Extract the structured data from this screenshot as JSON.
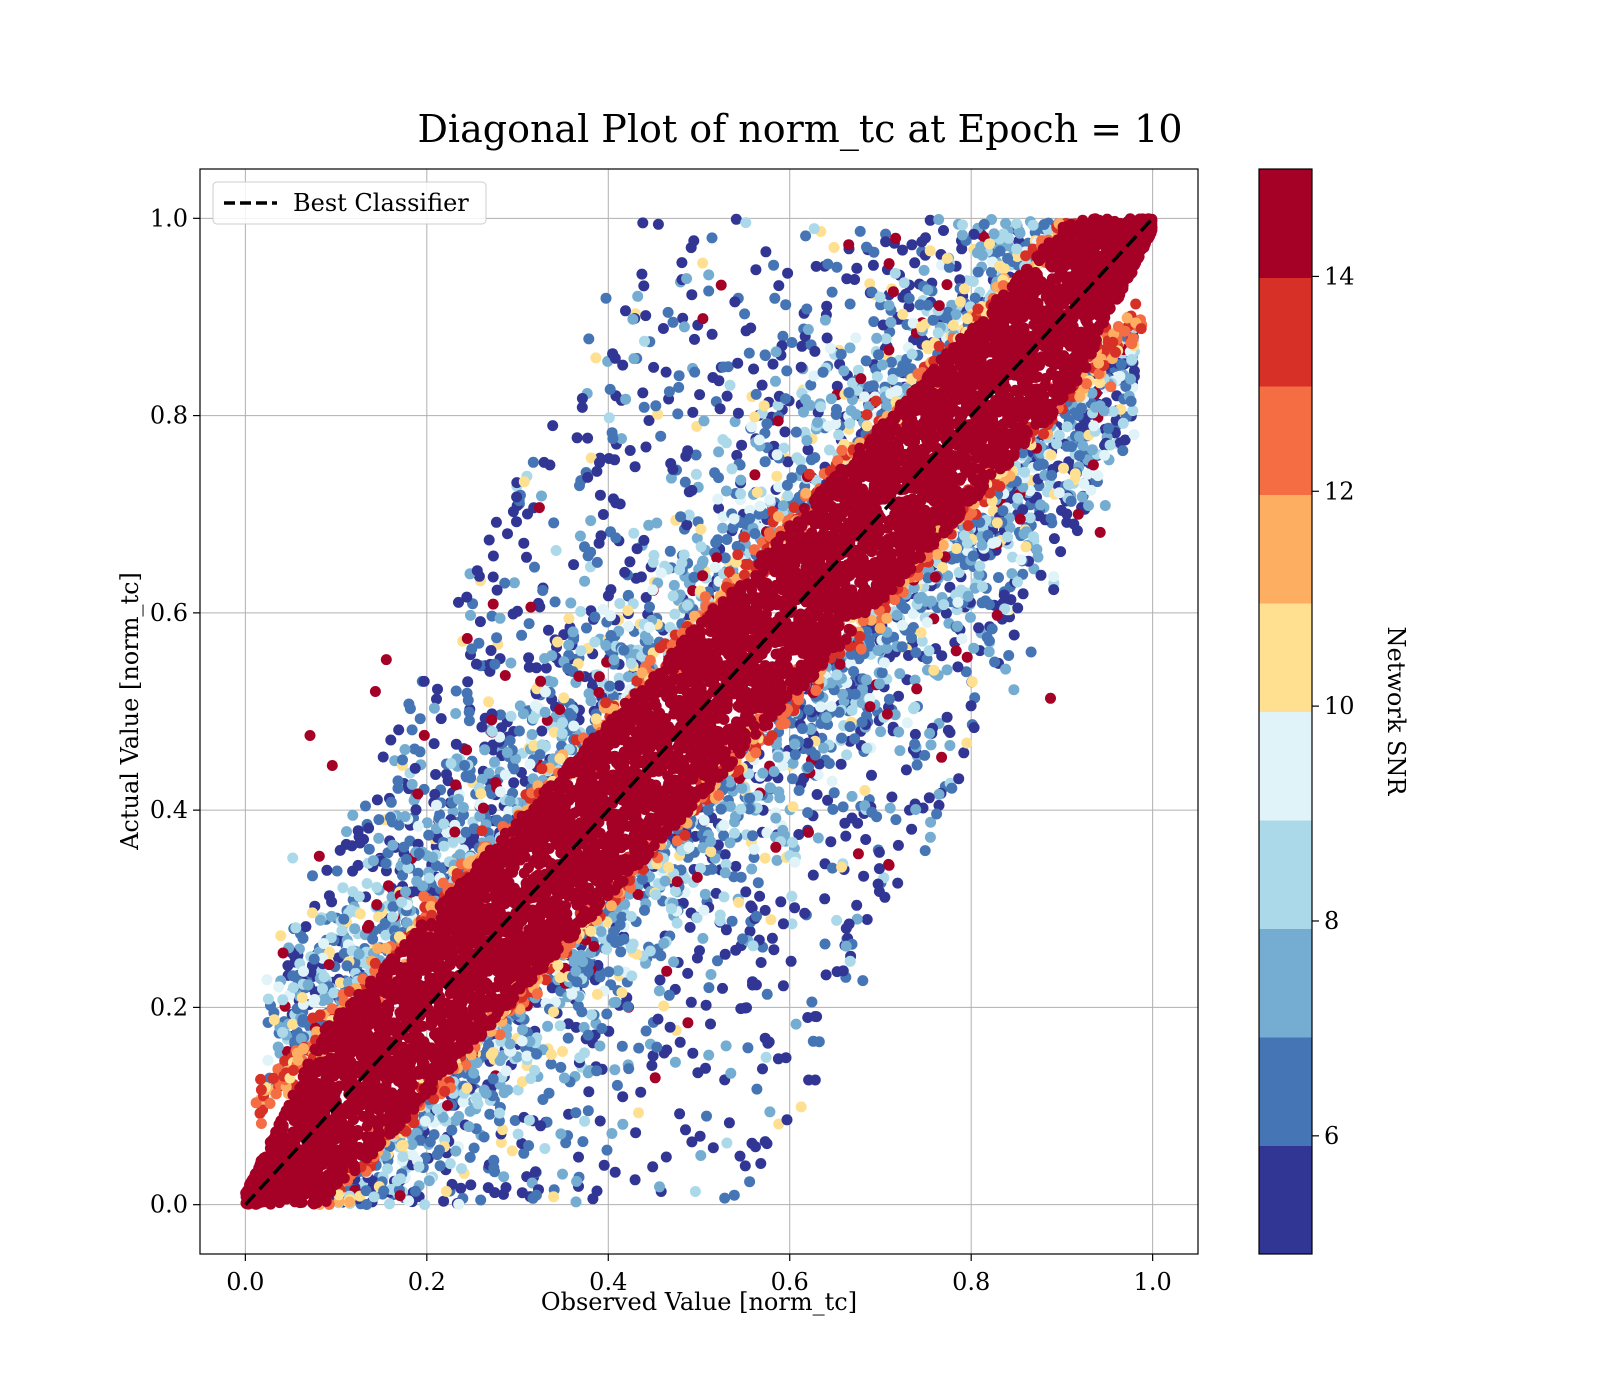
{
  "chart_data": {
    "type": "scatter",
    "title": "Diagonal Plot of norm_tc at Epoch = 10",
    "xlabel": "Observed Value [norm_tc]",
    "ylabel": "Actual Value [norm_tc]",
    "xlim": [
      -0.05,
      1.05
    ],
    "ylim": [
      -0.05,
      1.05
    ],
    "xticks": [
      "0.0",
      "0.2",
      "0.4",
      "0.6",
      "0.8",
      "1.0"
    ],
    "yticks": [
      "0.0",
      "0.2",
      "0.4",
      "0.6",
      "0.8",
      "1.0"
    ],
    "grid": true,
    "legend": {
      "position": "upper-left",
      "entries": [
        {
          "label": "Best Classifier",
          "style": "dashed",
          "color": "#000000"
        }
      ]
    },
    "reference_line": {
      "name": "Best Classifier",
      "x": [
        0,
        1
      ],
      "y": [
        0,
        1
      ]
    },
    "colorbar": {
      "label": "Network SNR",
      "range": [
        4.9,
        15.0
      ],
      "ticks": [
        "6",
        "8",
        "10",
        "12",
        "14"
      ],
      "levels": [
        {
          "from": 4.9,
          "to": 5.91,
          "color": "#313695"
        },
        {
          "from": 5.91,
          "to": 6.92,
          "color": "#4575b4"
        },
        {
          "from": 6.92,
          "to": 7.93,
          "color": "#74add1"
        },
        {
          "from": 7.93,
          "to": 8.94,
          "color": "#abd9e9"
        },
        {
          "from": 8.94,
          "to": 9.95,
          "color": "#e0f3f8"
        },
        {
          "from": 9.95,
          "to": 10.96,
          "color": "#fee090"
        },
        {
          "from": 10.96,
          "to": 11.97,
          "color": "#fdae61"
        },
        {
          "from": 11.97,
          "to": 12.98,
          "color": "#f46d43"
        },
        {
          "from": 12.98,
          "to": 13.99,
          "color": "#d73027"
        },
        {
          "from": 13.99,
          "to": 15.0,
          "color": "#a50026"
        }
      ]
    },
    "series": [
      {
        "snr_level": "high (>=14)",
        "color": "#a50026",
        "description_points": [
          {
            "x": 0.0,
            "y": 0.0
          },
          {
            "x": 0.1,
            "y": 0.12
          },
          {
            "x": 0.2,
            "y": 0.19
          },
          {
            "x": 0.3,
            "y": 0.31
          },
          {
            "x": 0.4,
            "y": 0.39
          },
          {
            "x": 0.5,
            "y": 0.51
          },
          {
            "x": 0.6,
            "y": 0.6
          },
          {
            "x": 0.7,
            "y": 0.71
          },
          {
            "x": 0.8,
            "y": 0.79
          },
          {
            "x": 0.9,
            "y": 0.91
          },
          {
            "x": 1.0,
            "y": 1.0
          }
        ]
      }
    ]
  }
}
